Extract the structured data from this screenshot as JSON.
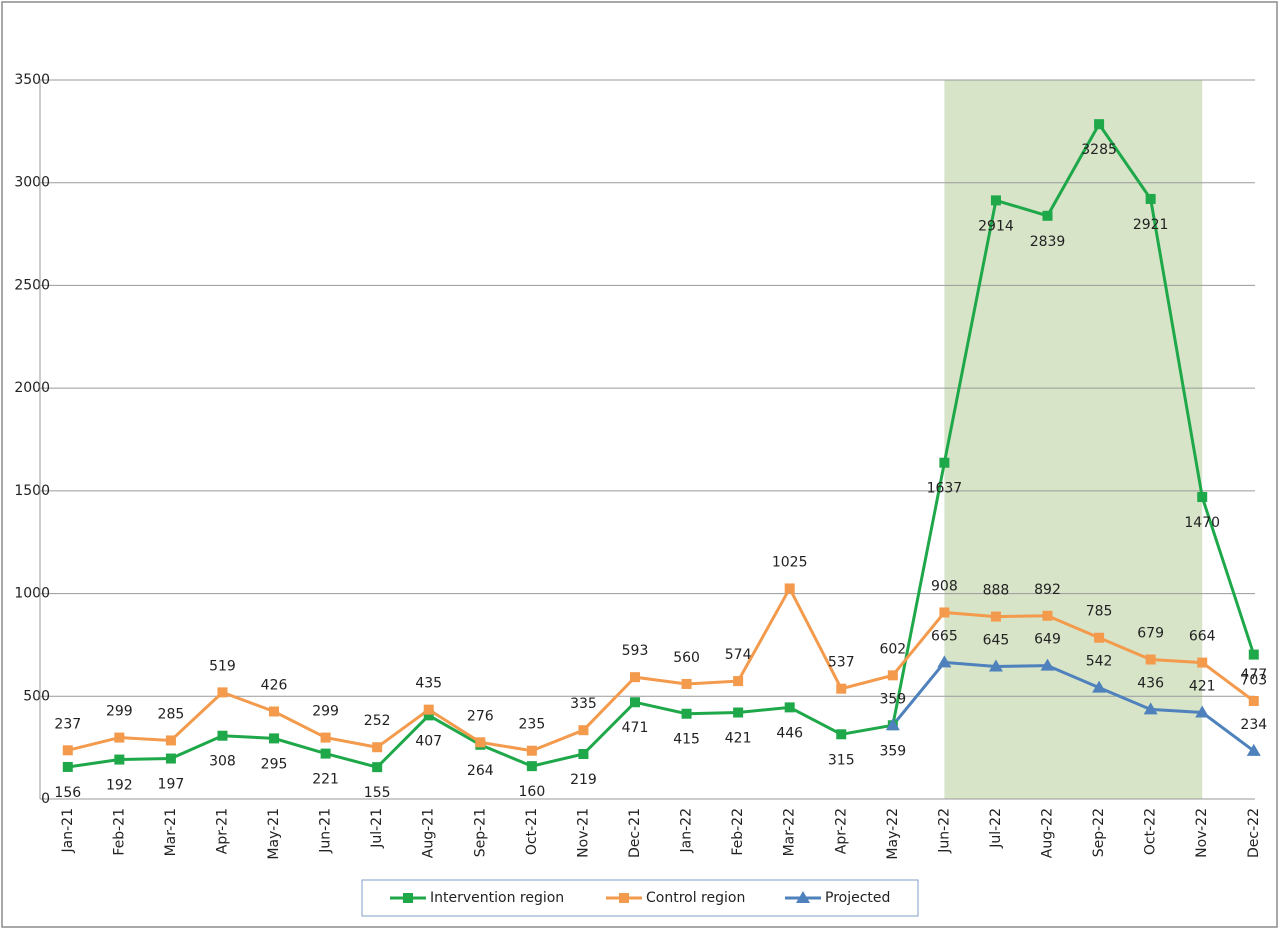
{
  "chart_data": {
    "type": "line",
    "categories": [
      "Jan-21",
      "Feb-21",
      "Mar-21",
      "Apr-21",
      "May-21",
      "Jun-21",
      "Jul-21",
      "Aug-21",
      "Sep-21",
      "Oct-21",
      "Nov-21",
      "Dec-21",
      "Jan-22",
      "Feb-22",
      "Mar-22",
      "Apr-22",
      "May-22",
      "Jun-22",
      "Jul-22",
      "Aug-22",
      "Sep-22",
      "Oct-22",
      "Nov-22",
      "Dec-22"
    ],
    "series": [
      {
        "name": "Intervention region",
        "color": "#1fa84a",
        "marker": "square",
        "label_position": "below",
        "values": [
          156,
          192,
          197,
          308,
          295,
          221,
          155,
          407,
          264,
          160,
          219,
          471,
          415,
          421,
          446,
          315,
          359,
          1637,
          2914,
          2839,
          3285,
          2921,
          1470,
          703
        ]
      },
      {
        "name": "Control region",
        "color": "#f39a4c",
        "marker": "square",
        "label_position": "above",
        "values": [
          237,
          299,
          285,
          519,
          426,
          299,
          252,
          435,
          276,
          235,
          335,
          593,
          560,
          574,
          1025,
          537,
          602,
          908,
          888,
          892,
          785,
          679,
          664,
          477
        ]
      },
      {
        "name": "Projected",
        "color": "#4f81bd",
        "marker": "triangle",
        "label_position": "above",
        "values": [
          null,
          null,
          null,
          null,
          null,
          null,
          null,
          null,
          null,
          null,
          null,
          null,
          null,
          null,
          null,
          null,
          359,
          665,
          645,
          649,
          542,
          436,
          421,
          234
        ]
      }
    ],
    "highlight_range": [
      "Jun-22",
      "Nov-22"
    ],
    "highlight_color": "#d7e4c8",
    "ylim": [
      0,
      3500
    ],
    "yticks": [
      0,
      500,
      1000,
      1500,
      2000,
      2500,
      3000,
      3500
    ],
    "grid": true
  }
}
